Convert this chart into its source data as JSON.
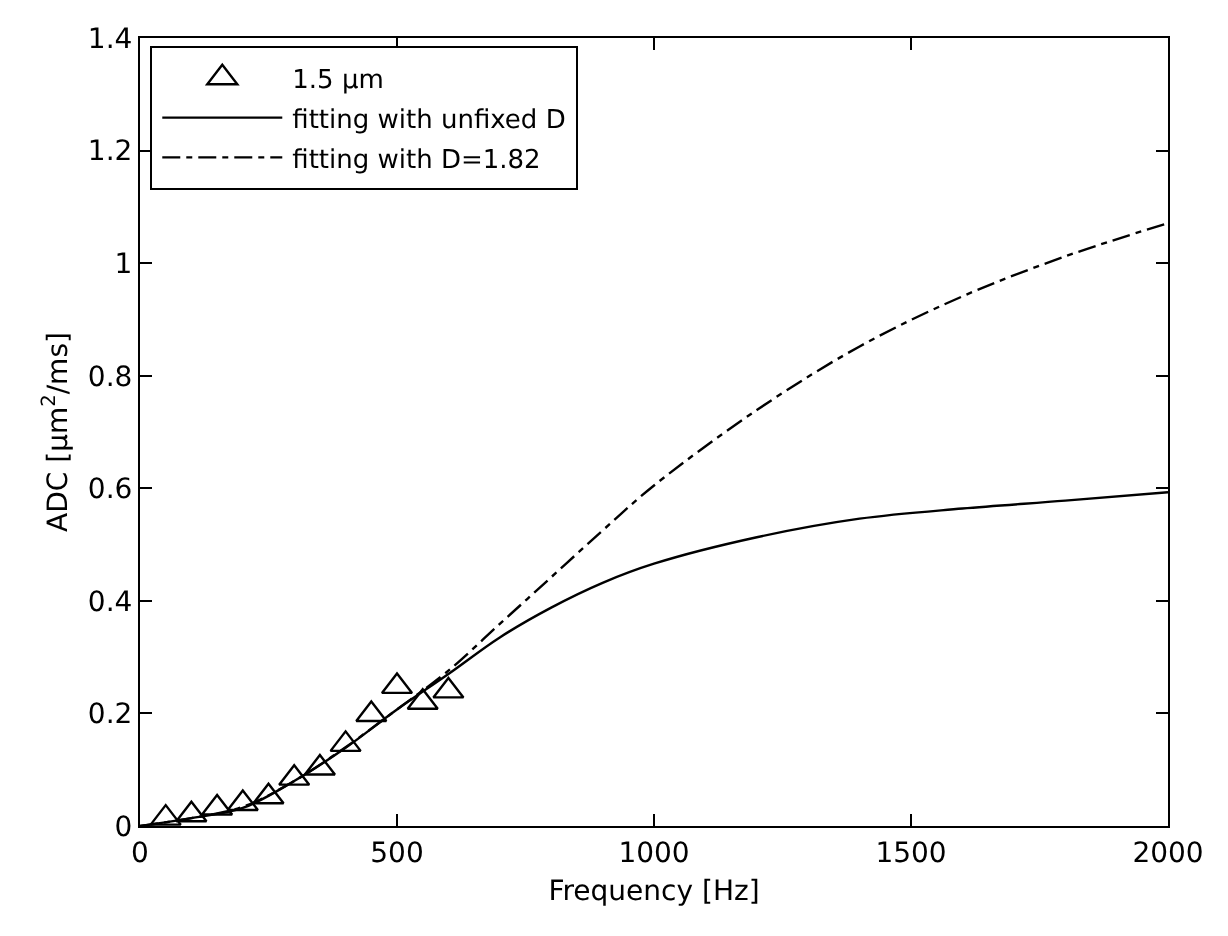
{
  "chart_data": {
    "type": "line",
    "xlabel": "Frequency [Hz]",
    "ylabel": "ADC [μm$^{2}$/ms]",
    "xlim": [
      0,
      2000
    ],
    "xticks": [
      0,
      500,
      1000,
      1500,
      2000
    ],
    "ylim": [
      0,
      1.4
    ],
    "yticks": [
      0,
      0.2,
      0.4,
      0.6,
      0.8,
      1,
      1.2,
      1.4
    ],
    "grid": false,
    "legend": "top left",
    "series": [
      {
        "name": "1.5 μm",
        "type": "scatter",
        "marker": "triangle",
        "color": "#000000",
        "x": [
          50,
          100,
          150,
          200,
          250,
          300,
          350,
          400,
          450,
          500,
          550,
          600
        ],
        "values": [
          0.014,
          0.02,
          0.032,
          0.04,
          0.052,
          0.085,
          0.103,
          0.145,
          0.198,
          0.248,
          0.22,
          0.24
        ]
      },
      {
        "name": "fitting with unfixed D",
        "line_style": "solid",
        "color": "#000000",
        "x": [
          0,
          100,
          200,
          300,
          400,
          500,
          600,
          700,
          800,
          900,
          1000,
          1200,
          1400,
          1600,
          1800,
          2000
        ],
        "values": [
          0,
          0.014,
          0.032,
          0.08,
          0.139,
          0.207,
          0.27,
          0.335,
          0.388,
          0.432,
          0.466,
          0.513,
          0.546,
          0.564,
          0.578,
          0.593
        ]
      },
      {
        "name": "fitting with D=1.82",
        "line_style": "dashdot",
        "color": "#000000",
        "x": [
          0,
          100,
          200,
          300,
          400,
          500,
          600,
          700,
          800,
          900,
          1000,
          1200,
          1400,
          1600,
          1800,
          2000
        ],
        "values": [
          0,
          0.014,
          0.034,
          0.08,
          0.14,
          0.207,
          0.276,
          0.359,
          0.442,
          0.525,
          0.605,
          0.739,
          0.852,
          0.941,
          1.012,
          1.071
        ]
      }
    ]
  }
}
